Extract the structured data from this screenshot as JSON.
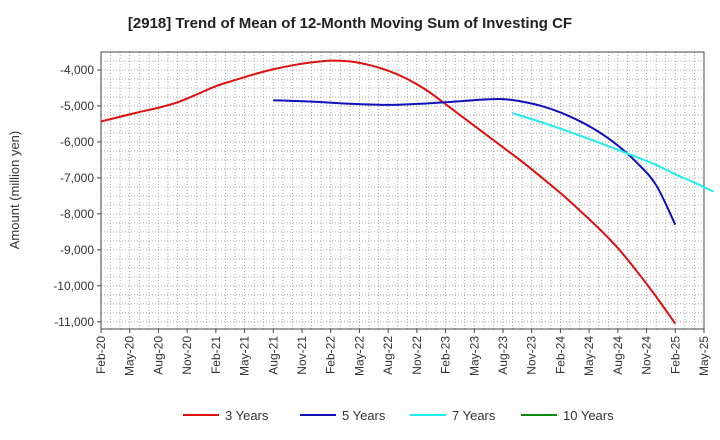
{
  "chart_data": {
    "type": "line",
    "title": "[2918]  Trend of Mean of 12-Month Moving Sum of Investing CF",
    "xlabel": "",
    "ylabel": "Amount (million yen)",
    "ylim": [
      -11200,
      -3500
    ],
    "yticks": [
      -4000,
      -5000,
      -6000,
      -7000,
      -8000,
      -9000,
      -10000,
      -11000
    ],
    "ytick_labels": [
      "-4,000",
      "-5,000",
      "-6,000",
      "-7,000",
      "-8,000",
      "-9,000",
      "-10,000",
      "-11,000"
    ],
    "xticks": [
      "Feb-20",
      "May-20",
      "Aug-20",
      "Nov-20",
      "Feb-21",
      "May-21",
      "Aug-21",
      "Nov-21",
      "Feb-22",
      "May-22",
      "Aug-22",
      "Nov-22",
      "Feb-23",
      "May-23",
      "Aug-23",
      "Nov-23",
      "Feb-24",
      "May-24",
      "Aug-24",
      "Nov-24",
      "Feb-25",
      "May-25"
    ],
    "grid": true,
    "legend_position": "bottom",
    "series": [
      {
        "name": "3 Years",
        "color": "#dd1111",
        "points": [
          [
            0,
            -5430
          ],
          [
            2,
            -5300
          ],
          [
            4,
            -5170
          ],
          [
            6,
            -5050
          ],
          [
            8,
            -4900
          ],
          [
            10,
            -4680
          ],
          [
            12,
            -4450
          ],
          [
            14,
            -4280
          ],
          [
            16,
            -4120
          ],
          [
            18,
            -3980
          ],
          [
            20,
            -3870
          ],
          [
            22,
            -3790
          ],
          [
            24,
            -3740
          ],
          [
            26,
            -3760
          ],
          [
            28,
            -3860
          ],
          [
            30,
            -4020
          ],
          [
            32,
            -4250
          ],
          [
            34,
            -4560
          ],
          [
            36,
            -4950
          ],
          [
            38,
            -5350
          ],
          [
            40,
            -5750
          ],
          [
            42,
            -6150
          ],
          [
            44,
            -6550
          ],
          [
            46,
            -6980
          ],
          [
            48,
            -7420
          ],
          [
            50,
            -7900
          ],
          [
            52,
            -8400
          ],
          [
            54,
            -8950
          ],
          [
            56,
            -9600
          ],
          [
            58,
            -10300
          ],
          [
            60,
            -11050
          ]
        ]
      },
      {
        "name": "5 Years",
        "color": "#1111bb",
        "points": [
          [
            18,
            -4840
          ],
          [
            22,
            -4880
          ],
          [
            26,
            -4940
          ],
          [
            30,
            -4970
          ],
          [
            34,
            -4930
          ],
          [
            38,
            -4860
          ],
          [
            40,
            -4820
          ],
          [
            42,
            -4810
          ],
          [
            44,
            -4880
          ],
          [
            46,
            -5000
          ],
          [
            48,
            -5180
          ],
          [
            50,
            -5420
          ],
          [
            52,
            -5720
          ],
          [
            54,
            -6100
          ],
          [
            56,
            -6580
          ],
          [
            58,
            -7200
          ],
          [
            60,
            -8300
          ]
        ]
      },
      {
        "name": "7 Years",
        "color": "#22eeee",
        "points": [
          [
            43,
            -5200
          ],
          [
            46,
            -5450
          ],
          [
            50,
            -5820
          ],
          [
            54,
            -6220
          ],
          [
            58,
            -6640
          ],
          [
            60,
            -6900
          ],
          [
            62,
            -7130
          ],
          [
            64,
            -7380
          ]
        ]
      },
      {
        "name": "10 Years",
        "color": "#118811",
        "points": []
      }
    ]
  }
}
